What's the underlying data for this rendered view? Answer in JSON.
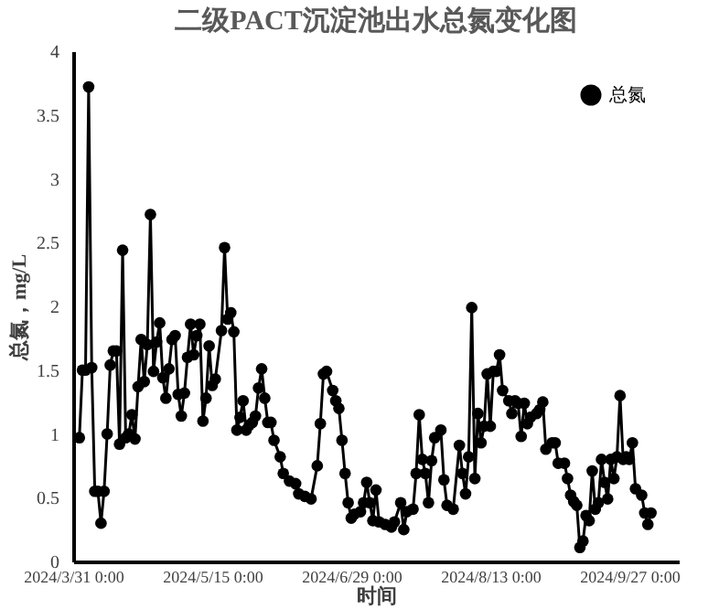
{
  "chart_data": {
    "type": "line",
    "title": "二级PACT沉淀池出水总氮变化图",
    "xlabel": "时间",
    "ylabel": "总氮，mg/L",
    "xlim": [
      "2024-03-31",
      "2024-10-13"
    ],
    "xticks": [
      {
        "value": "2024-03-31",
        "label": "2024/3/31 0:00"
      },
      {
        "value": "2024-05-15",
        "label": "2024/5/15 0:00"
      },
      {
        "value": "2024-06-29",
        "label": "2024/6/29 0:00"
      },
      {
        "value": "2024-08-13",
        "label": "2024/8/13 0:00"
      },
      {
        "value": "2024-09-27",
        "label": "2024/9/27 0:00"
      }
    ],
    "ylim": [
      0,
      4
    ],
    "yticks": [
      0,
      0.5,
      1,
      1.5,
      2,
      2.5,
      3,
      3.5,
      4
    ],
    "grid": false,
    "legend": "top right",
    "marker": "circle",
    "line_style": "solid",
    "series": [
      {
        "name": "总氮",
        "color": "#000000",
        "x": [
          "2024-04-02",
          "2024-04-03",
          "2024-04-04",
          "2024-04-05",
          "2024-04-06",
          "2024-04-07",
          "2024-04-08",
          "2024-04-09",
          "2024-04-10",
          "2024-04-11",
          "2024-04-12",
          "2024-04-13",
          "2024-04-14",
          "2024-04-15",
          "2024-04-16",
          "2024-04-17",
          "2024-04-18",
          "2024-04-19",
          "2024-04-20",
          "2024-04-21",
          "2024-04-22",
          "2024-04-23",
          "2024-04-24",
          "2024-04-25",
          "2024-04-26",
          "2024-04-27",
          "2024-04-28",
          "2024-04-29",
          "2024-04-30",
          "2024-05-01",
          "2024-05-02",
          "2024-05-03",
          "2024-05-04",
          "2024-05-05",
          "2024-05-06",
          "2024-05-07",
          "2024-05-08",
          "2024-05-09",
          "2024-05-10",
          "2024-05-11",
          "2024-05-12",
          "2024-05-13",
          "2024-05-14",
          "2024-05-15",
          "2024-05-16",
          "2024-05-18",
          "2024-05-19",
          "2024-05-20",
          "2024-05-21",
          "2024-05-22",
          "2024-05-23",
          "2024-05-24",
          "2024-05-25",
          "2024-05-26",
          "2024-05-27",
          "2024-05-28",
          "2024-05-29",
          "2024-05-30",
          "2024-05-31",
          "2024-06-01",
          "2024-06-02",
          "2024-06-03",
          "2024-06-04",
          "2024-06-06",
          "2024-06-07",
          "2024-06-09",
          "2024-06-11",
          "2024-06-12",
          "2024-06-14",
          "2024-06-16",
          "2024-06-18",
          "2024-06-19",
          "2024-06-20",
          "2024-06-21",
          "2024-06-23",
          "2024-06-24",
          "2024-06-25",
          "2024-06-26",
          "2024-06-27",
          "2024-06-28",
          "2024-06-29",
          "2024-06-30",
          "2024-07-02",
          "2024-07-03",
          "2024-07-04",
          "2024-07-05",
          "2024-07-06",
          "2024-07-07",
          "2024-07-08",
          "2024-07-10",
          "2024-07-12",
          "2024-07-13",
          "2024-07-15",
          "2024-07-16",
          "2024-07-17",
          "2024-07-19",
          "2024-07-20",
          "2024-07-21",
          "2024-07-22",
          "2024-07-23",
          "2024-07-24",
          "2024-07-25",
          "2024-07-26",
          "2024-07-28",
          "2024-07-29",
          "2024-07-30",
          "2024-08-01",
          "2024-08-03",
          "2024-08-04",
          "2024-08-05",
          "2024-08-06",
          "2024-08-07",
          "2024-08-08",
          "2024-08-09",
          "2024-08-10",
          "2024-08-11",
          "2024-08-12",
          "2024-08-13",
          "2024-08-14",
          "2024-08-15",
          "2024-08-16",
          "2024-08-17",
          "2024-08-19",
          "2024-08-20",
          "2024-08-21",
          "2024-08-22",
          "2024-08-23",
          "2024-08-24",
          "2024-08-25",
          "2024-08-26",
          "2024-08-28",
          "2024-08-29",
          "2024-08-30",
          "2024-08-31",
          "2024-09-02",
          "2024-09-03",
          "2024-09-04",
          "2024-09-06",
          "2024-09-07",
          "2024-09-08",
          "2024-09-09",
          "2024-09-10",
          "2024-09-11",
          "2024-09-12",
          "2024-09-13",
          "2024-09-14",
          "2024-09-15",
          "2024-09-16",
          "2024-09-17",
          "2024-09-18",
          "2024-09-19",
          "2024-09-20",
          "2024-09-21",
          "2024-09-22",
          "2024-09-23",
          "2024-09-24",
          "2024-09-25",
          "2024-09-26",
          "2024-09-27",
          "2024-09-28",
          "2024-09-29",
          "2024-10-01",
          "2024-10-02",
          "2024-10-03",
          "2024-10-04"
        ],
        "values": [
          0.97,
          1.5,
          1.5,
          3.72,
          1.52,
          0.55,
          0.55,
          0.3,
          0.55,
          1.0,
          1.54,
          1.65,
          1.65,
          0.92,
          2.44,
          0.97,
          1.0,
          1.15,
          0.96,
          1.37,
          1.74,
          1.41,
          1.7,
          2.72,
          1.49,
          1.72,
          1.87,
          1.44,
          1.28,
          1.51,
          1.74,
          1.77,
          1.31,
          1.14,
          1.32,
          1.6,
          1.86,
          1.62,
          1.77,
          1.86,
          1.1,
          1.28,
          1.69,
          1.38,
          1.43,
          1.81,
          2.46,
          1.9,
          1.95,
          1.8,
          1.03,
          1.13,
          1.26,
          1.03,
          1.07,
          1.09,
          1.14,
          1.36,
          1.51,
          1.28,
          1.09,
          1.09,
          0.95,
          0.82,
          0.69,
          0.63,
          0.61,
          0.53,
          0.51,
          0.49,
          0.75,
          1.08,
          1.47,
          1.49,
          1.34,
          1.26,
          1.2,
          0.95,
          0.69,
          0.46,
          0.34,
          0.37,
          0.39,
          0.46,
          0.62,
          0.46,
          0.32,
          0.56,
          0.31,
          0.29,
          0.27,
          0.31,
          0.46,
          0.25,
          0.39,
          0.41,
          0.69,
          1.15,
          0.8,
          0.69,
          0.46,
          0.79,
          0.97,
          1.03,
          0.64,
          0.44,
          0.41,
          0.91,
          0.69,
          0.53,
          0.82,
          1.99,
          0.65,
          1.16,
          0.93,
          1.06,
          1.47,
          1.06,
          1.49,
          1.49,
          1.62,
          1.34,
          1.26,
          1.16,
          1.26,
          1.24,
          0.98,
          1.24,
          1.08,
          1.13,
          1.16,
          1.19,
          1.25,
          0.88,
          0.93,
          0.93,
          0.77,
          0.77,
          0.65,
          0.52,
          0.47,
          0.44,
          0.11,
          0.16,
          0.36,
          0.32,
          0.71,
          0.41,
          0.46,
          0.8,
          0.62,
          0.49,
          0.8,
          0.65,
          0.82,
          1.3,
          0.8,
          0.82,
          0.8,
          0.93,
          0.57,
          0.52,
          0.38,
          0.29,
          0.38
        ]
      }
    ]
  }
}
